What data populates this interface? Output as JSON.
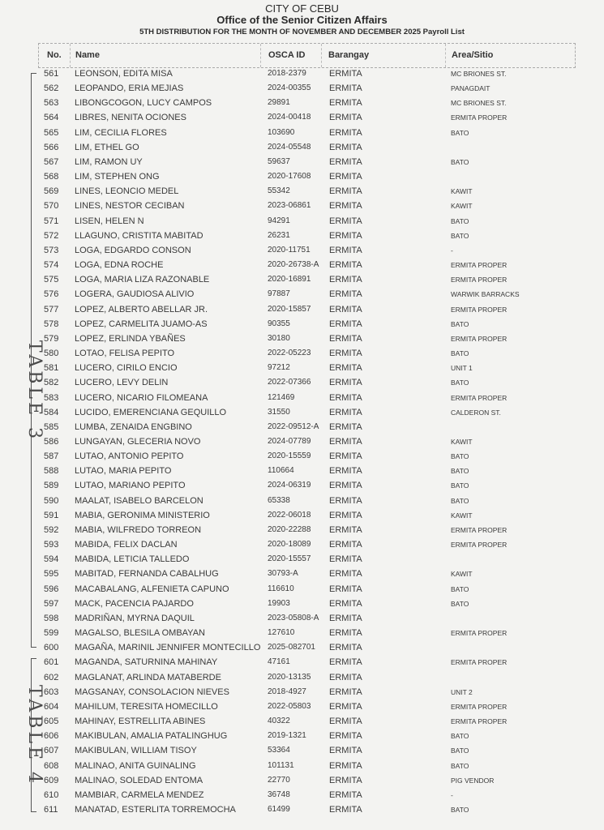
{
  "header": {
    "city": "CITY OF CEBU",
    "office": "Office of the Senior Citizen Affairs",
    "subtitle": "5TH DISTRIBUTION FOR THE MONTH OF NOVEMBER AND DECEMBER 2025 Payroll List"
  },
  "table": {
    "columns": [
      "No.",
      "Name",
      "OSCA ID",
      "Barangay",
      "Area/Sitio"
    ],
    "rows": [
      [
        "561",
        "LEONSON, EDITA MISA",
        "2018-2379",
        "ERMITA",
        "MC BRIONES ST."
      ],
      [
        "562",
        "LEOPANDO, ERIA MEJIAS",
        "2024-00355",
        "ERMITA",
        "PANAGDAIT"
      ],
      [
        "563",
        "LIBONGCOGON, LUCY CAMPOS",
        "29891",
        "ERMITA",
        "MC BRIONES ST."
      ],
      [
        "564",
        "LIBRES, NENITA OCIONES",
        "2024-00418",
        "ERMITA",
        "ERMITA PROPER"
      ],
      [
        "565",
        "LIM, CECILIA FLORES",
        "103690",
        "ERMITA",
        "BATO"
      ],
      [
        "566",
        "LIM, ETHEL GO",
        "2024-05548",
        "ERMITA",
        ""
      ],
      [
        "567",
        "LIM, RAMON UY",
        "59637",
        "ERMITA",
        "BATO"
      ],
      [
        "568",
        "LIM, STEPHEN ONG",
        "2020-17608",
        "ERMITA",
        ""
      ],
      [
        "569",
        "LINES, LEONCIO MEDEL",
        "55342",
        "ERMITA",
        "KAWIT"
      ],
      [
        "570",
        "LINES, NESTOR CECIBAN",
        "2023-06861",
        "ERMITA",
        "KAWIT"
      ],
      [
        "571",
        "LISEN, HELEN N",
        "94291",
        "ERMITA",
        "BATO"
      ],
      [
        "572",
        "LLAGUNO, CRISTITA MABITAD",
        "26231",
        "ERMITA",
        "BATO"
      ],
      [
        "573",
        "LOGA, EDGARDO CONSON",
        "2020-11751",
        "ERMITA",
        "-"
      ],
      [
        "574",
        "LOGA, EDNA ROCHE",
        "2020-26738-A",
        "ERMITA",
        "ERMITA PROPER"
      ],
      [
        "575",
        "LOGA, MARIA LIZA RAZONABLE",
        "2020-16891",
        "ERMITA",
        "ERMITA PROPER"
      ],
      [
        "576",
        "LOGERA, GAUDIOSA ALIVIO",
        "97887",
        "ERMITA",
        "WARWIK BARRACKS"
      ],
      [
        "577",
        "LOPEZ, ALBERTO ABELLAR JR.",
        "2020-15857",
        "ERMITA",
        "ERMITA PROPER"
      ],
      [
        "578",
        "LOPEZ, CARMELITA JUAMO-AS",
        "90355",
        "ERMITA",
        "BATO"
      ],
      [
        "579",
        "LOPEZ, ERLINDA YBAÑES",
        "30180",
        "ERMITA",
        "ERMITA PROPER"
      ],
      [
        "580",
        "LOTAO, FELISA PEPITO",
        "2022-05223",
        "ERMITA",
        "BATO"
      ],
      [
        "581",
        "LUCERO, CIRILO ENCIO",
        "97212",
        "ERMITA",
        "UNIT 1"
      ],
      [
        "582",
        "LUCERO, LEVY DELIN",
        "2022-07366",
        "ERMITA",
        "BATO"
      ],
      [
        "583",
        "LUCERO, NICARIO FILOMEANA",
        "121469",
        "ERMITA",
        "ERMITA PROPER"
      ],
      [
        "584",
        "LUCIDO, EMERENCIANA GEQUILLO",
        "31550",
        "ERMITA",
        "CALDERON ST."
      ],
      [
        "585",
        "LUMBA, ZENAIDA ENGBINO",
        "2022-09512-A",
        "ERMITA",
        ""
      ],
      [
        "586",
        "LUNGAYAN, GLECERIA NOVO",
        "2024-07789",
        "ERMITA",
        "KAWIT"
      ],
      [
        "587",
        "LUTAO, ANTONIO PEPITO",
        "2020-15559",
        "ERMITA",
        "BATO"
      ],
      [
        "588",
        "LUTAO, MARIA PEPITO",
        "110664",
        "ERMITA",
        "BATO"
      ],
      [
        "589",
        "LUTAO, MARIANO PEPITO",
        "2024-06319",
        "ERMITA",
        "BATO"
      ],
      [
        "590",
        "MAALAT, ISABELO BARCELON",
        "65338",
        "ERMITA",
        "BATO"
      ],
      [
        "591",
        "MABIA, GERONIMA MINISTERIO",
        "2022-06018",
        "ERMITA",
        "KAWIT"
      ],
      [
        "592",
        "MABIA, WILFREDO TORREON",
        "2020-22288",
        "ERMITA",
        "ERMITA PROPER"
      ],
      [
        "593",
        "MABIDA, FELIX DACLAN",
        "2020-18089",
        "ERMITA",
        "ERMITA PROPER"
      ],
      [
        "594",
        "MABIDA, LETICIA TALLEDO",
        "2020-15557",
        "ERMITA",
        ""
      ],
      [
        "595",
        "MABITAD, FERNANDA CABALHUG",
        "30793-A",
        "ERMITA",
        "KAWIT"
      ],
      [
        "596",
        "MACABALANG, ALFENIETA CAPUNO",
        "116610",
        "ERMITA",
        "BATO"
      ],
      [
        "597",
        "MACK, PACENCIA PAJARDO",
        "19903",
        "ERMITA",
        "BATO"
      ],
      [
        "598",
        "MADRIÑAN, MYRNA DAQUIL",
        "2023-05808-A",
        "ERMITA",
        ""
      ],
      [
        "599",
        "MAGALSO, BLESILA OMBAYAN",
        "127610",
        "ERMITA",
        "ERMITA PROPER"
      ],
      [
        "600",
        "MAGAÑA, MARINIL JENNIFER MONTECILLO",
        "2025-082701",
        "ERMITA",
        ""
      ],
      [
        "601",
        "MAGANDA, SATURNINA MAHINAY",
        "47161",
        "ERMITA",
        "ERMITA PROPER"
      ],
      [
        "602",
        "MAGLANAT, ARLINDA MATABERDE",
        "2020-13135",
        "ERMITA",
        ""
      ],
      [
        "603",
        "MAGSANAY, CONSOLACION NIEVES",
        "2018-4927",
        "ERMITA",
        "UNIT 2"
      ],
      [
        "604",
        "MAHILUM, TERESITA HOMECILLO",
        "2022-05803",
        "ERMITA",
        "ERMITA PROPER"
      ],
      [
        "605",
        "MAHINAY, ESTRELLITA ABINES",
        "40322",
        "ERMITA",
        "ERMITA PROPER"
      ],
      [
        "606",
        "MAKIBULAN, AMALIA PATALINGHUG",
        "2019-1321",
        "ERMITA",
        "BATO"
      ],
      [
        "607",
        "MAKIBULAN, WILLIAM TISOY",
        "53364",
        "ERMITA",
        "BATO"
      ],
      [
        "608",
        "MALINAO, ANITA GUINALING",
        "101131",
        "ERMITA",
        "BATO"
      ],
      [
        "609",
        "MALINAO, SOLEDAD ENTOMA",
        "22770",
        "ERMITA",
        "PIG VENDOR"
      ],
      [
        "610",
        "MAMBIAR, CARMELA MENDEZ",
        "36748",
        "ERMITA",
        "-"
      ],
      [
        "611",
        "MANATAD, ESTERLITA TORREMOCHA",
        "61499",
        "ERMITA",
        "BATO"
      ]
    ]
  },
  "annotations": {
    "group1": "TABLE 3",
    "group2": "TABLE 4"
  }
}
